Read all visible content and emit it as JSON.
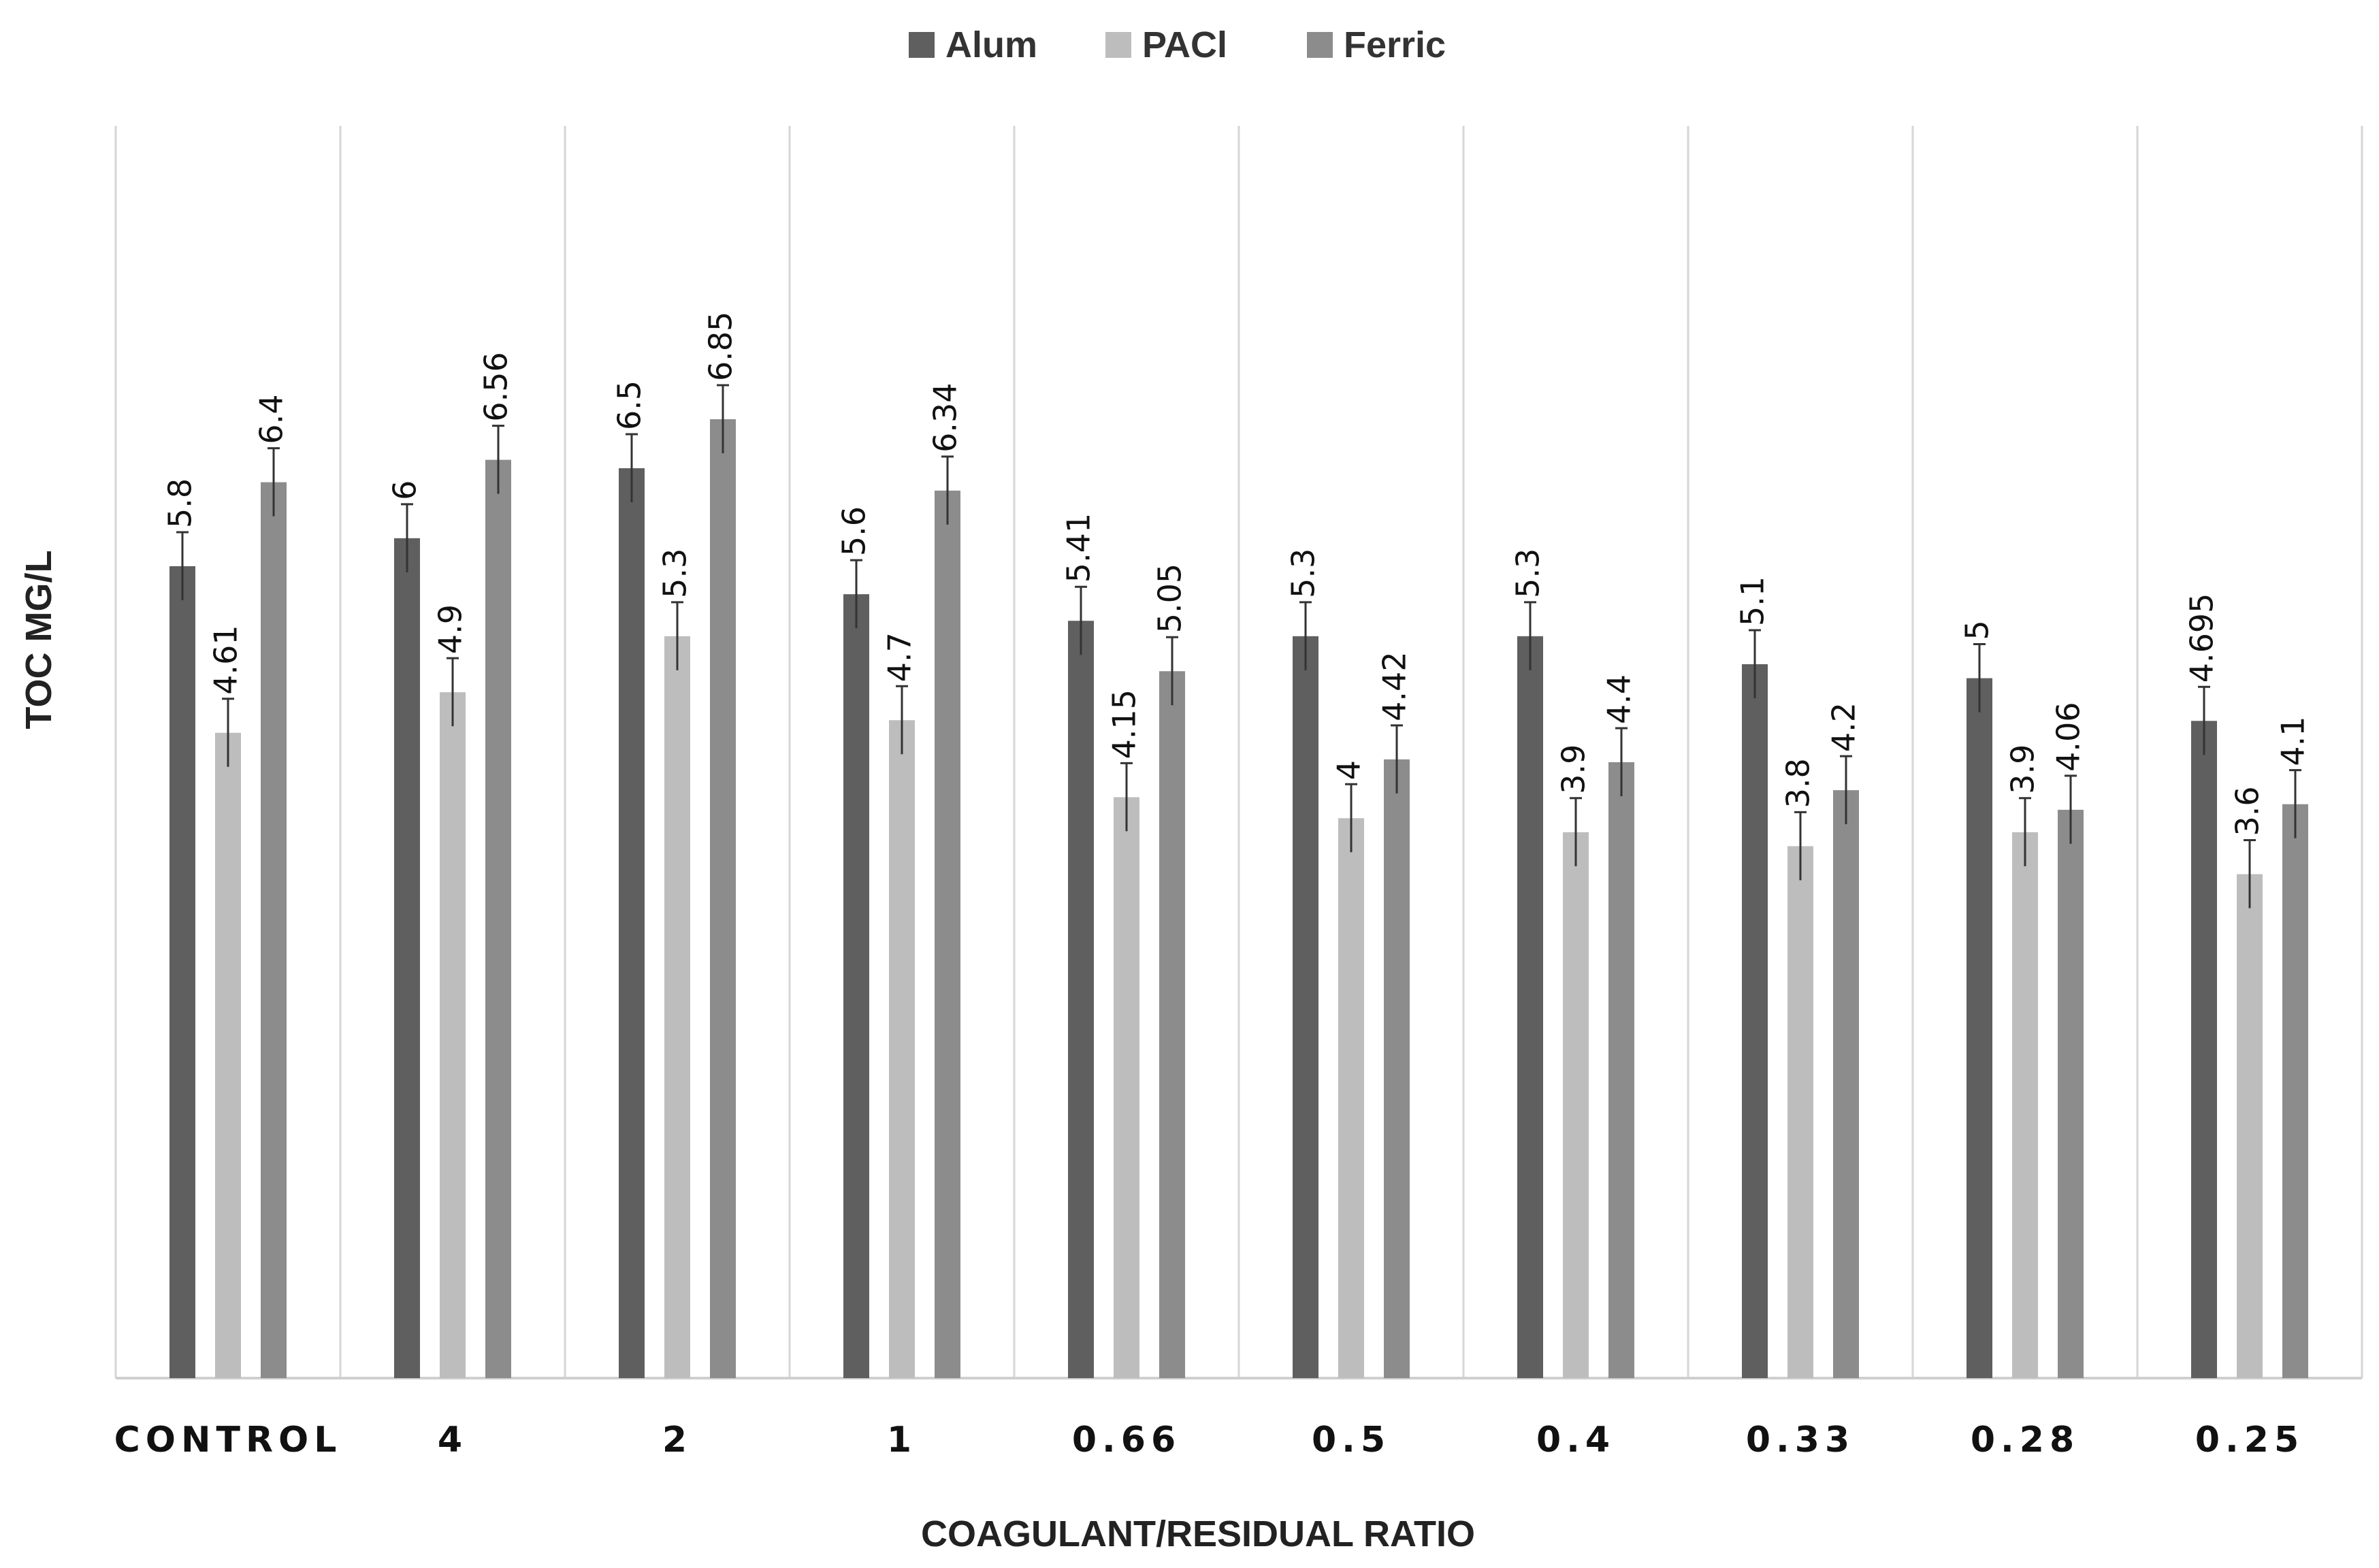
{
  "chart_data": {
    "type": "bar",
    "title": "",
    "xlabel": "COAGULANT/RESIDUAL RATIO",
    "ylabel": "TOC MG/L",
    "ylim": [
      0,
      8
    ],
    "grid": "vertical-separators",
    "legend_position": "top",
    "categories": [
      "CONTROL",
      "4",
      "2",
      "1",
      "0.66",
      "0.5",
      "0.4",
      "0.33",
      "0.28",
      "0.25"
    ],
    "series": [
      {
        "name": "Alum",
        "color": "#5f5f5f",
        "values": [
          5.8,
          6,
          6.5,
          5.6,
          5.41,
          5.3,
          5.3,
          5.1,
          5,
          4.695
        ],
        "labels": [
          "5.8",
          "6",
          "6.5",
          "5.6",
          "5.41",
          "5.3",
          "5.3",
          "5.1",
          "5",
          "4.695"
        ]
      },
      {
        "name": "PACl",
        "color": "#bdbdbd",
        "values": [
          4.61,
          4.9,
          5.3,
          4.7,
          4.15,
          4,
          3.9,
          3.8,
          3.9,
          3.6
        ],
        "labels": [
          "4.61",
          "4.9",
          "5.3",
          "4.7",
          "4.15",
          "4",
          "3.9",
          "3.8",
          "3.9",
          "3.6"
        ]
      },
      {
        "name": "Ferric",
        "color": "#8c8c8c",
        "values": [
          6.4,
          6.56,
          6.85,
          6.34,
          5.05,
          4.42,
          4.4,
          4.2,
          4.06,
          4.1
        ],
        "labels": [
          "6.4",
          "6.56",
          "6.85",
          "6.34",
          "5.05",
          "4.42",
          "4.4",
          "4.2",
          "4.06",
          "4.1"
        ]
      }
    ]
  }
}
